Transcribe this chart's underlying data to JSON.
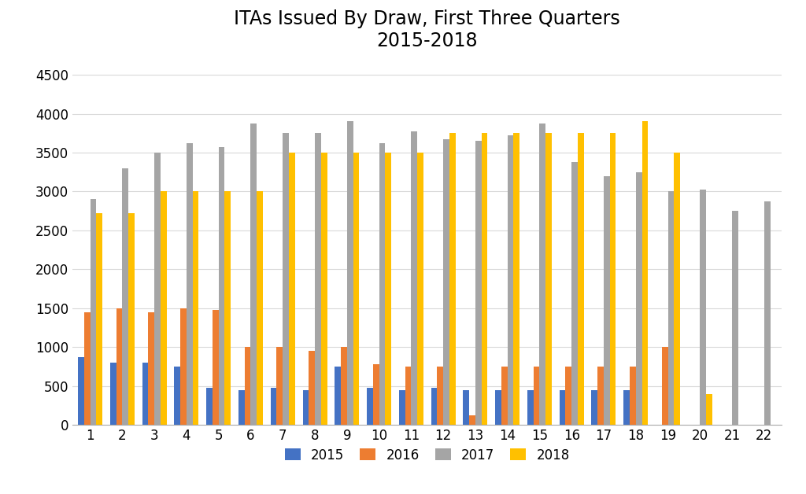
{
  "title": "ITAs Issued By Draw, First Three Quarters\n2015-2018",
  "draws": [
    1,
    2,
    3,
    4,
    5,
    6,
    7,
    8,
    9,
    10,
    11,
    12,
    13,
    14,
    15,
    16,
    17,
    18,
    19,
    20,
    21,
    22
  ],
  "series": {
    "2015": [
      875,
      800,
      800,
      750,
      475,
      450,
      475,
      450,
      750,
      475,
      450,
      475,
      450,
      450,
      450,
      450,
      450,
      450,
      0,
      0,
      0,
      0
    ],
    "2016": [
      1450,
      1500,
      1450,
      1500,
      1475,
      1000,
      1000,
      950,
      1000,
      775,
      750,
      750,
      125,
      750,
      750,
      750,
      750,
      750,
      1000,
      0,
      0,
      0
    ],
    "2017": [
      2900,
      3300,
      3500,
      3625,
      3575,
      3875,
      3750,
      3750,
      3900,
      3625,
      3775,
      3675,
      3650,
      3725,
      3875,
      3375,
      3200,
      3250,
      3000,
      3025,
      2750,
      2875
    ],
    "2018": [
      2725,
      2725,
      3000,
      3000,
      3000,
      3000,
      3500,
      3500,
      3500,
      3500,
      3500,
      3750,
      3750,
      3750,
      3750,
      3750,
      3750,
      3900,
      3500,
      400,
      0,
      0
    ]
  },
  "colors": {
    "2015": "#4472C4",
    "2016": "#ED7D31",
    "2017": "#A5A5A5",
    "2018": "#FFC000"
  },
  "ylim": [
    0,
    4700
  ],
  "yticks": [
    0,
    500,
    1000,
    1500,
    2000,
    2500,
    3000,
    3500,
    4000,
    4500
  ],
  "legend_labels": [
    "2015",
    "2016",
    "2017",
    "2018"
  ],
  "background_color": "#FFFFFF",
  "title_fontsize": 17,
  "tick_fontsize": 12,
  "legend_fontsize": 12,
  "bar_width": 0.19
}
